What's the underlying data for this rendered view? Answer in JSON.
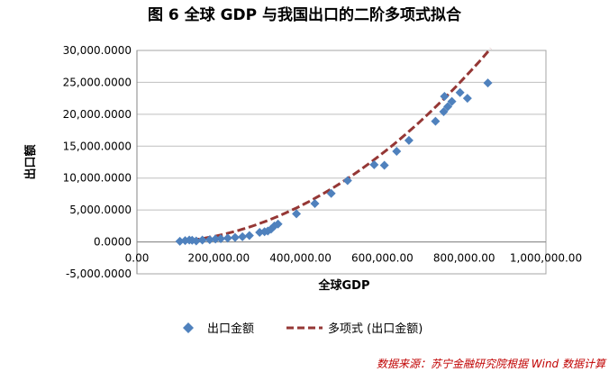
{
  "chart_data": {
    "type": "scatter",
    "title": "图 6 全球 GDP 与我国出口的二阶多项式拟合",
    "xlabel": "全球GDP",
    "ylabel": "出口额",
    "xlim": [
      0,
      1000000
    ],
    "ylim": [
      -5000,
      30000
    ],
    "x_ticks": [
      "0.00",
      "200,000.00",
      "400,000.00",
      "600,000.00",
      "800,000.00",
      "1,000,000.00"
    ],
    "y_ticks": [
      "-5,000.0000",
      "0.0000",
      "5,000.0000",
      "10,000.0000",
      "15,000.0000",
      "20,000.0000",
      "25,000.0000",
      "30,000.0000"
    ],
    "grid": true,
    "legend_position": "bottom",
    "colors": {
      "points": "#4f81bd",
      "trend": "#953735"
    },
    "series": [
      {
        "name": "出口金额",
        "kind": "scatter",
        "x": [
          105000,
          118000,
          128000,
          135000,
          145000,
          160000,
          178000,
          192000,
          205000,
          222000,
          240000,
          258000,
          275000,
          300000,
          312000,
          320000,
          328000,
          336000,
          345000,
          390000,
          435000,
          475000,
          515000,
          580000,
          605000,
          635000,
          665000,
          730000,
          750000,
          752000,
          760000,
          770000,
          790000,
          808000,
          858000
        ],
        "y": [
          100,
          200,
          300,
          250,
          150,
          300,
          350,
          450,
          500,
          600,
          700,
          800,
          1000,
          1500,
          1600,
          1700,
          2000,
          2500,
          2800,
          4400,
          6000,
          7600,
          9600,
          12100,
          12000,
          14200,
          15900,
          18900,
          20400,
          22800,
          21200,
          22000,
          23400,
          22500,
          24900
        ]
      },
      {
        "name": "多项式 (出口金额)",
        "kind": "trendline-poly2",
        "coefficients": {
          "a": 4.5e-08,
          "b": -0.0039,
          "c": 0
        },
        "x_range": [
          105000,
          865000
        ]
      }
    ],
    "source_note": "数据来源：苏宁金融研究院根据 Wind 数据计算"
  }
}
